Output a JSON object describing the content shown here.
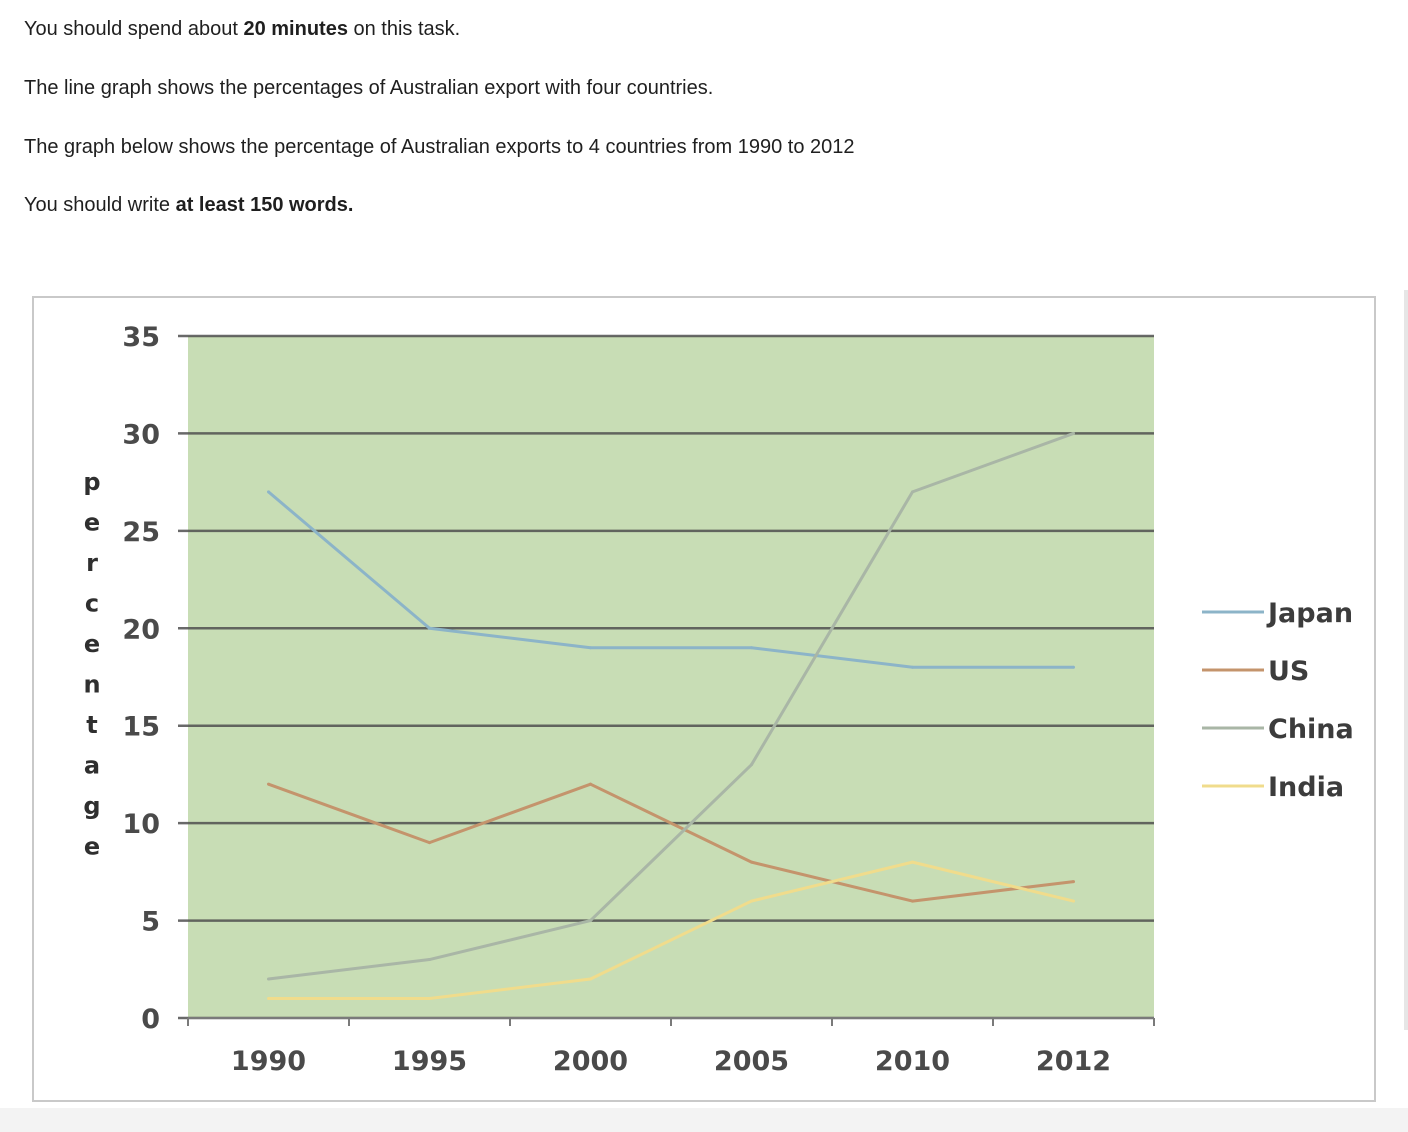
{
  "instructions": {
    "line1": {
      "pre": "You should spend about ",
      "bold": "20 minutes",
      "post": " on this task."
    },
    "line2": "The line graph shows the percentages of Australian export with four countries.",
    "line3": "The graph below shows the percentage of Australian exports to 4 countries from 1990 to 2012",
    "line4": {
      "pre": "You should write ",
      "bold": "at least 150 words."
    }
  },
  "chart_data": {
    "type": "line",
    "title": "",
    "xlabel": "",
    "ylabel": "percentage",
    "categories": [
      "1990",
      "1995",
      "2000",
      "2005",
      "2010",
      "2012"
    ],
    "yticks": [
      "0",
      "5",
      "10",
      "15",
      "20",
      "25",
      "30",
      "35"
    ],
    "ylim": [
      0,
      35
    ],
    "grid": true,
    "legend_position": "right",
    "plot_background": "#c8ddb5",
    "series": [
      {
        "name": "Japan",
        "color": "#8cb4c8",
        "values": [
          27,
          20,
          19,
          19,
          18,
          18
        ]
      },
      {
        "name": "US",
        "color": "#c4946c",
        "values": [
          12,
          9,
          12,
          8,
          6,
          7
        ]
      },
      {
        "name": "China",
        "color": "#a9b6a6",
        "values": [
          2,
          3,
          5,
          13,
          27,
          30
        ]
      },
      {
        "name": "India",
        "color": "#f0dc8c",
        "values": [
          1,
          1,
          2,
          6,
          8,
          6
        ]
      }
    ]
  }
}
